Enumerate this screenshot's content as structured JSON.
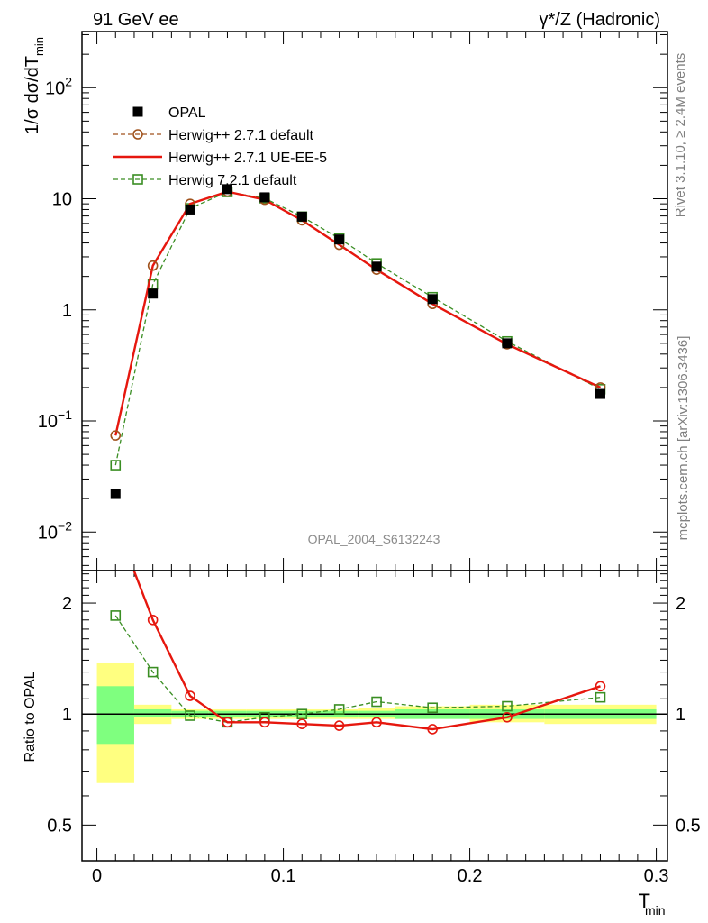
{
  "header": {
    "left": "91 GeV ee",
    "right": "γ*/Z (Hadronic)"
  },
  "side": {
    "rivet": "Rivet 3.1.10, ≥ 2.4M events",
    "mcplots": "mcplots.cern.ch [arXiv:1306.3436]"
  },
  "analysis_label": "OPAL_2004_S6132243",
  "axes": {
    "ylabel_main": "1/σ dσ/dT",
    "ylabel_main_sub": "min",
    "ylabel_ratio": "Ratio to OPAL",
    "xlabel": "T",
    "xlabel_sub": "min",
    "main_tick_labels": [
      {
        "value": 100,
        "base": "10",
        "exp": "2"
      },
      {
        "value": 10,
        "base": "10",
        "exp": ""
      },
      {
        "value": 1,
        "base": "1",
        "exp": ""
      },
      {
        "value": 0.1,
        "base": "10",
        "exp": "−1"
      },
      {
        "value": 0.01,
        "base": "10",
        "exp": "−2"
      }
    ],
    "ratio_tick_labels": [
      {
        "value": 2,
        "label": "2"
      },
      {
        "value": 1,
        "label": "1"
      },
      {
        "value": 0.5,
        "label": "0.5"
      }
    ],
    "x_tick_labels": [
      {
        "value": 0,
        "label": "0"
      },
      {
        "value": 0.1,
        "label": "0.1"
      },
      {
        "value": 0.2,
        "label": "0.2"
      },
      {
        "value": 0.3,
        "label": "0.3"
      }
    ]
  },
  "legend": [
    {
      "key": "opal",
      "label": "OPAL"
    },
    {
      "key": "h271def",
      "label": "Herwig++ 2.7.1 default"
    },
    {
      "key": "h271ue",
      "label": "Herwig++ 2.7.1 UE-EE-5"
    },
    {
      "key": "h721",
      "label": "Herwig 7.2.1 default"
    }
  ],
  "chart_data": {
    "type": "scatter",
    "xlim": [
      -0.008,
      0.306
    ],
    "main": {
      "scale": "log",
      "ylim": [
        0.0045,
        320
      ]
    },
    "ratio": {
      "scale": "log",
      "ylim": [
        0.4,
        2.45
      ]
    },
    "bins": [
      {
        "lo": 0.0,
        "hi": 0.02
      },
      {
        "lo": 0.02,
        "hi": 0.04
      },
      {
        "lo": 0.04,
        "hi": 0.06
      },
      {
        "lo": 0.06,
        "hi": 0.08
      },
      {
        "lo": 0.08,
        "hi": 0.1
      },
      {
        "lo": 0.1,
        "hi": 0.12
      },
      {
        "lo": 0.12,
        "hi": 0.14
      },
      {
        "lo": 0.14,
        "hi": 0.16
      },
      {
        "lo": 0.16,
        "hi": 0.2
      },
      {
        "lo": 0.2,
        "hi": 0.24
      },
      {
        "lo": 0.24,
        "hi": 0.3
      }
    ],
    "x": [
      0.01,
      0.03,
      0.05,
      0.07,
      0.09,
      0.11,
      0.13,
      0.15,
      0.18,
      0.22,
      0.27
    ],
    "series": [
      {
        "key": "opal",
        "name": "OPAL",
        "color": "#000000",
        "values": [
          0.022,
          1.4,
          8.0,
          12.2,
          10.3,
          6.9,
          4.3,
          2.45,
          1.25,
          0.5,
          0.175
        ]
      },
      {
        "key": "h271def",
        "name": "Herwig++ 2.7.1 default",
        "color": "#a0521c",
        "values": [
          0.074,
          2.5,
          9.0,
          11.6,
          9.8,
          6.4,
          3.85,
          2.3,
          1.13,
          0.49,
          0.2
        ],
        "ratio": [
          3.3,
          1.8,
          1.12,
          0.95,
          0.95,
          0.94,
          0.93,
          0.95,
          0.91,
          0.98,
          1.19
        ]
      },
      {
        "key": "h271ue",
        "name": "Herwig++ 2.7.1 UE-EE-5",
        "color": "#e6170e",
        "values": [
          0.074,
          2.5,
          9.0,
          11.6,
          9.8,
          6.4,
          3.85,
          2.3,
          1.13,
          0.49,
          0.2
        ],
        "ratio": [
          3.3,
          1.8,
          1.12,
          0.95,
          0.95,
          0.94,
          0.93,
          0.95,
          0.91,
          0.98,
          1.19
        ]
      },
      {
        "key": "h721",
        "name": "Herwig 7.2.1 default",
        "color": "#3a8e23",
        "values": [
          0.04,
          1.7,
          8.2,
          11.5,
          10.1,
          6.9,
          4.4,
          2.62,
          1.3,
          0.52,
          0.193
        ],
        "ratio": [
          1.85,
          1.3,
          0.99,
          0.95,
          0.98,
          1.0,
          1.03,
          1.08,
          1.04,
          1.05,
          1.11
        ]
      }
    ],
    "uncertainty_bands": {
      "stat_color": "#7fff7f",
      "total_color": "#ffff80",
      "stat": [
        [
          0.83,
          1.19
        ],
        [
          0.98,
          1.03
        ],
        [
          0.98,
          1.02
        ],
        [
          0.98,
          1.02
        ],
        [
          0.98,
          1.02
        ],
        [
          0.98,
          1.02
        ],
        [
          0.98,
          1.02
        ],
        [
          0.98,
          1.02
        ],
        [
          0.97,
          1.03
        ],
        [
          0.97,
          1.03
        ],
        [
          0.97,
          1.03
        ]
      ],
      "total": [
        [
          0.65,
          1.38
        ],
        [
          0.94,
          1.06
        ],
        [
          0.97,
          1.03
        ],
        [
          0.97,
          1.03
        ],
        [
          0.97,
          1.03
        ],
        [
          0.97,
          1.03
        ],
        [
          0.97,
          1.03
        ],
        [
          0.97,
          1.04
        ],
        [
          0.97,
          1.05
        ],
        [
          0.95,
          1.06
        ],
        [
          0.94,
          1.06
        ]
      ]
    }
  }
}
